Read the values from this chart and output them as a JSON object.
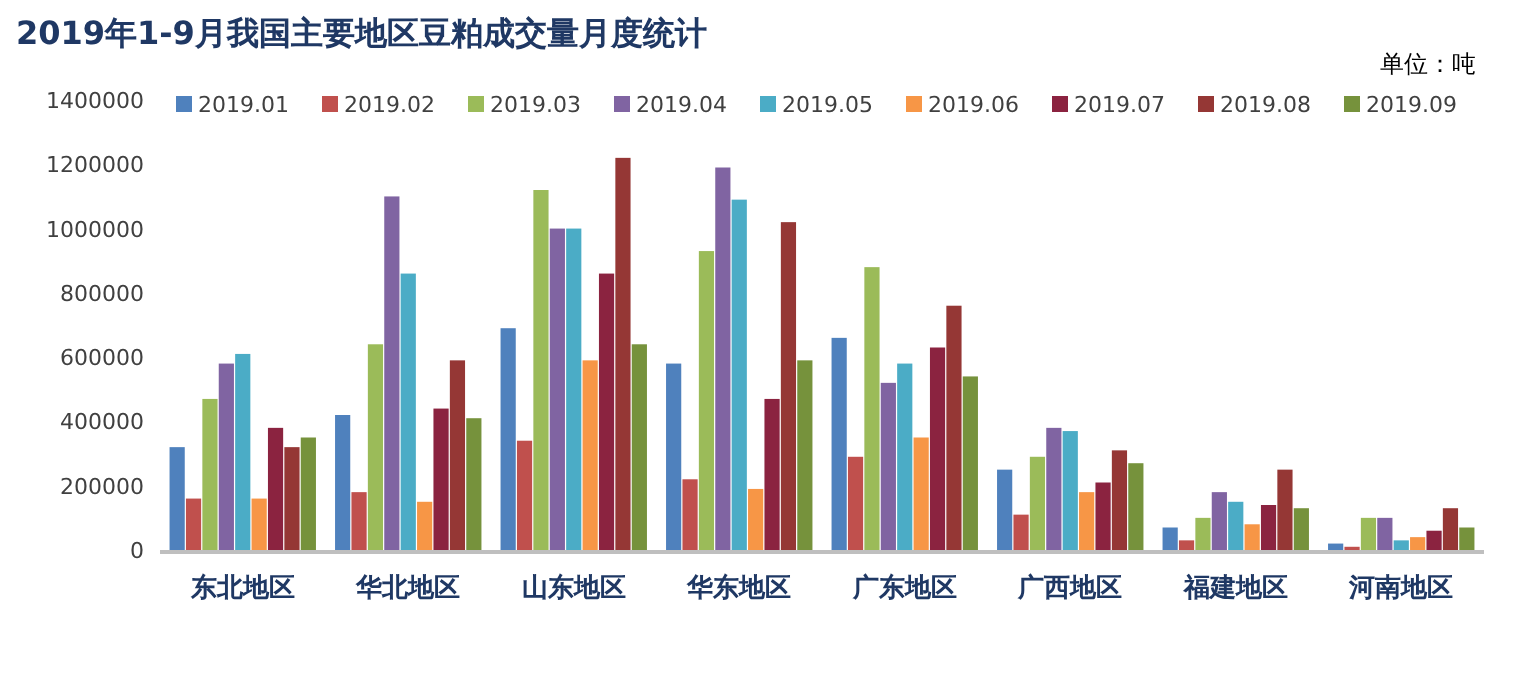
{
  "chart_data": {
    "type": "bar",
    "title": "2019年1-9月我国主要地区豆粕成交量月度统计",
    "annotations": [
      "单位：吨"
    ],
    "categories": [
      "东北地区",
      "华北地区",
      "山东地区",
      "华东地区",
      "广东地区",
      "广西地区",
      "福建地区",
      "河南地区"
    ],
    "ylim": [
      0,
      1400000
    ],
    "yticks": [
      0,
      200000,
      400000,
      600000,
      800000,
      1000000,
      1200000,
      1400000
    ],
    "legend": "top",
    "series": [
      {
        "name": "2019.01",
        "color": "#4f81bd",
        "values": [
          320000,
          420000,
          690000,
          580000,
          660000,
          250000,
          70000,
          20000
        ]
      },
      {
        "name": "2019.02",
        "color": "#c0504d",
        "values": [
          160000,
          180000,
          340000,
          220000,
          290000,
          110000,
          30000,
          10000
        ]
      },
      {
        "name": "2019.03",
        "color": "#9bbb59",
        "values": [
          470000,
          640000,
          1120000,
          930000,
          880000,
          290000,
          100000,
          100000
        ]
      },
      {
        "name": "2019.04",
        "color": "#8064a2",
        "values": [
          580000,
          1100000,
          1000000,
          1190000,
          520000,
          380000,
          180000,
          100000
        ]
      },
      {
        "name": "2019.05",
        "color": "#4bacc6",
        "values": [
          610000,
          860000,
          1000000,
          1090000,
          580000,
          370000,
          150000,
          30000
        ]
      },
      {
        "name": "2019.06",
        "color": "#f79646",
        "values": [
          160000,
          150000,
          590000,
          190000,
          350000,
          180000,
          80000,
          40000
        ]
      },
      {
        "name": "2019.07",
        "color": "#8b2340",
        "values": [
          380000,
          440000,
          860000,
          470000,
          630000,
          210000,
          140000,
          60000
        ]
      },
      {
        "name": "2019.08",
        "color": "#953735",
        "values": [
          320000,
          590000,
          1220000,
          1020000,
          760000,
          310000,
          250000,
          130000
        ]
      },
      {
        "name": "2019.09",
        "color": "#76923c",
        "values": [
          350000,
          410000,
          640000,
          590000,
          540000,
          270000,
          130000,
          70000
        ]
      }
    ]
  }
}
